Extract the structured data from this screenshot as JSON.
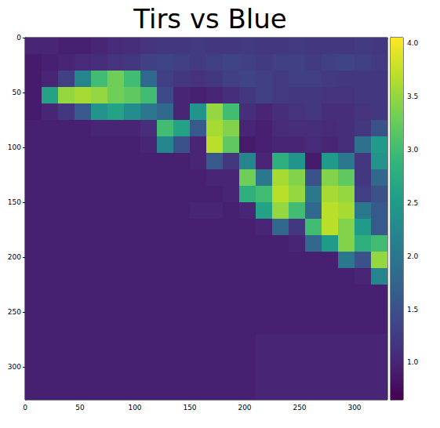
{
  "chart_data": {
    "type": "heatmap",
    "title": "Tirs vs Blue",
    "xbins": [
      0,
      15,
      30,
      45,
      60,
      75,
      90,
      105,
      120,
      135,
      150,
      165,
      180,
      195,
      210,
      225,
      240,
      255,
      270,
      285,
      300,
      315,
      330
    ],
    "ybins": [
      0,
      15,
      30,
      45,
      60,
      75,
      90,
      105,
      120,
      135,
      150,
      165,
      180,
      195,
      210,
      225,
      240,
      255,
      270,
      285,
      300,
      315,
      330
    ],
    "xlim": [
      0,
      330
    ],
    "ylim": [
      330,
      0
    ],
    "xticks": [
      0,
      50,
      100,
      150,
      200,
      250,
      300
    ],
    "yticks": [
      0,
      50,
      100,
      150,
      200,
      250,
      300
    ],
    "cells": [
      [
        1.0,
        1.0,
        0.95,
        0.95,
        1.0,
        1.05,
        1.1,
        1.15,
        1.2,
        1.2,
        1.25,
        1.2,
        1.2,
        1.25,
        1.2,
        1.2,
        1.25,
        1.2,
        1.2,
        1.2,
        1.25,
        1.2
      ],
      [
        0.9,
        0.95,
        1.0,
        1.05,
        1.1,
        1.15,
        1.2,
        1.3,
        1.35,
        1.3,
        1.25,
        1.3,
        1.35,
        1.3,
        1.25,
        1.3,
        1.3,
        1.25,
        1.3,
        1.35,
        1.3,
        1.25
      ],
      [
        0.9,
        1.0,
        1.3,
        2.2,
        3.0,
        3.3,
        3.0,
        1.8,
        1.3,
        1.2,
        1.15,
        1.2,
        1.3,
        1.35,
        1.3,
        1.25,
        1.3,
        1.3,
        1.25,
        1.2,
        1.2,
        1.2
      ],
      [
        0.9,
        2.6,
        3.5,
        3.6,
        3.5,
        3.3,
        3.2,
        3.0,
        1.4,
        1.0,
        0.95,
        1.0,
        1.1,
        1.2,
        1.3,
        1.25,
        1.2,
        1.2,
        1.15,
        1.15,
        1.2,
        1.2
      ],
      [
        0.9,
        1.0,
        1.2,
        1.6,
        2.4,
        2.6,
        2.3,
        2.0,
        1.8,
        1.0,
        2.4,
        3.5,
        3.0,
        1.1,
        1.0,
        1.1,
        1.15,
        1.2,
        1.1,
        1.1,
        1.15,
        1.2
      ],
      [
        0.95,
        0.95,
        0.95,
        0.95,
        1.0,
        1.0,
        1.0,
        1.1,
        3.0,
        2.6,
        1.6,
        3.6,
        3.4,
        1.0,
        0.95,
        1.05,
        1.1,
        1.1,
        1.05,
        1.1,
        1.2,
        1.5
      ],
      [
        0.95,
        0.95,
        0.95,
        0.95,
        0.95,
        0.95,
        0.95,
        1.0,
        2.2,
        1.5,
        1.0,
        3.7,
        3.2,
        0.9,
        0.95,
        1.0,
        1.0,
        1.05,
        1.0,
        1.1,
        1.9,
        2.5
      ],
      [
        0.95,
        0.95,
        0.95,
        0.95,
        0.95,
        0.95,
        0.95,
        0.95,
        0.95,
        0.95,
        1.0,
        1.6,
        1.2,
        2.2,
        1.0,
        2.8,
        2.4,
        0.9,
        2.5,
        2.0,
        1.2,
        2.4
      ],
      [
        0.95,
        0.95,
        0.95,
        0.95,
        0.95,
        0.95,
        0.95,
        0.95,
        0.95,
        0.95,
        0.95,
        1.0,
        1.0,
        3.3,
        2.0,
        3.6,
        3.4,
        1.5,
        3.4,
        3.2,
        1.2,
        1.8
      ],
      [
        0.95,
        0.95,
        0.95,
        0.95,
        0.95,
        0.95,
        0.95,
        0.95,
        0.95,
        0.95,
        0.95,
        0.95,
        1.0,
        2.8,
        3.0,
        3.7,
        3.5,
        2.0,
        3.6,
        3.5,
        1.3,
        1.5
      ],
      [
        0.95,
        0.95,
        0.95,
        0.95,
        0.95,
        0.95,
        0.95,
        0.95,
        0.95,
        0.95,
        1.0,
        1.0,
        0.95,
        1.0,
        2.6,
        3.5,
        3.0,
        1.8,
        3.7,
        3.6,
        2.0,
        1.6
      ],
      [
        0.95,
        0.95,
        0.95,
        0.95,
        0.95,
        0.95,
        0.95,
        0.95,
        0.95,
        0.95,
        0.95,
        0.95,
        0.95,
        0.95,
        1.0,
        1.8,
        1.2,
        3.0,
        3.7,
        3.4,
        2.5,
        1.6
      ],
      [
        0.95,
        0.95,
        0.95,
        0.95,
        0.95,
        0.95,
        0.95,
        0.95,
        0.95,
        0.95,
        0.95,
        0.95,
        0.95,
        0.95,
        0.95,
        0.95,
        1.0,
        1.8,
        2.5,
        3.4,
        2.8,
        3.0
      ],
      [
        0.95,
        0.95,
        0.95,
        0.95,
        0.95,
        0.95,
        0.95,
        0.95,
        0.95,
        0.95,
        0.95,
        0.95,
        0.95,
        0.95,
        0.95,
        0.95,
        0.95,
        0.95,
        0.95,
        2.0,
        1.5,
        3.5
      ],
      [
        0.95,
        0.95,
        0.95,
        0.95,
        0.95,
        0.95,
        0.95,
        0.95,
        0.95,
        0.95,
        0.95,
        0.95,
        0.95,
        0.95,
        0.95,
        0.95,
        0.95,
        0.95,
        0.95,
        0.95,
        1.0,
        2.2
      ],
      [
        0.95,
        0.95,
        0.95,
        0.95,
        0.95,
        0.95,
        0.95,
        0.95,
        0.95,
        0.95,
        0.95,
        0.95,
        0.95,
        0.95,
        0.95,
        0.95,
        0.95,
        0.95,
        0.95,
        0.95,
        0.95,
        0.95
      ],
      [
        0.95,
        0.95,
        0.95,
        0.95,
        0.95,
        0.95,
        0.95,
        0.95,
        0.95,
        0.95,
        0.95,
        0.95,
        0.95,
        0.95,
        0.95,
        0.95,
        0.95,
        0.95,
        0.95,
        0.95,
        0.95,
        0.95
      ],
      [
        0.95,
        0.95,
        0.95,
        0.95,
        0.95,
        0.95,
        0.95,
        0.95,
        0.95,
        0.95,
        0.95,
        0.95,
        0.95,
        0.95,
        0.95,
        0.95,
        0.95,
        0.95,
        0.95,
        0.95,
        0.95,
        0.95
      ],
      [
        0.95,
        0.95,
        0.95,
        0.95,
        0.95,
        0.95,
        0.95,
        0.95,
        0.95,
        0.95,
        0.95,
        0.95,
        0.95,
        0.95,
        1.0,
        1.0,
        1.0,
        1.0,
        1.0,
        1.0,
        1.0,
        1.0
      ],
      [
        0.95,
        0.95,
        0.95,
        0.95,
        0.95,
        0.95,
        0.95,
        0.95,
        0.95,
        0.95,
        0.95,
        0.95,
        0.95,
        0.95,
        1.0,
        1.0,
        1.0,
        1.0,
        1.0,
        1.0,
        1.0,
        1.0
      ],
      [
        0.95,
        0.95,
        0.95,
        0.95,
        0.95,
        0.95,
        0.95,
        0.95,
        0.95,
        0.95,
        0.95,
        0.95,
        0.95,
        0.95,
        1.0,
        1.0,
        1.0,
        1.0,
        1.0,
        1.0,
        1.0,
        1.0
      ],
      [
        0.95,
        0.95,
        0.95,
        0.95,
        0.95,
        0.95,
        0.95,
        0.95,
        0.95,
        0.95,
        0.95,
        0.95,
        0.95,
        0.95,
        1.0,
        1.0,
        1.0,
        1.0,
        1.0,
        1.0,
        1.0,
        1.0
      ]
    ],
    "colorbar_range": [
      0.65,
      4.05
    ],
    "colorbar_ticks": [
      {
        "value": 1,
        "label": "1.0"
      },
      {
        "value": 1.5,
        "label": "1.5"
      },
      {
        "value": 2,
        "label": "2.0"
      },
      {
        "value": 2.5,
        "label": "2.5"
      },
      {
        "value": 3,
        "label": "3.0"
      },
      {
        "value": 3.5,
        "label": "3.5"
      },
      {
        "value": 4,
        "label": "4.0"
      }
    ]
  }
}
